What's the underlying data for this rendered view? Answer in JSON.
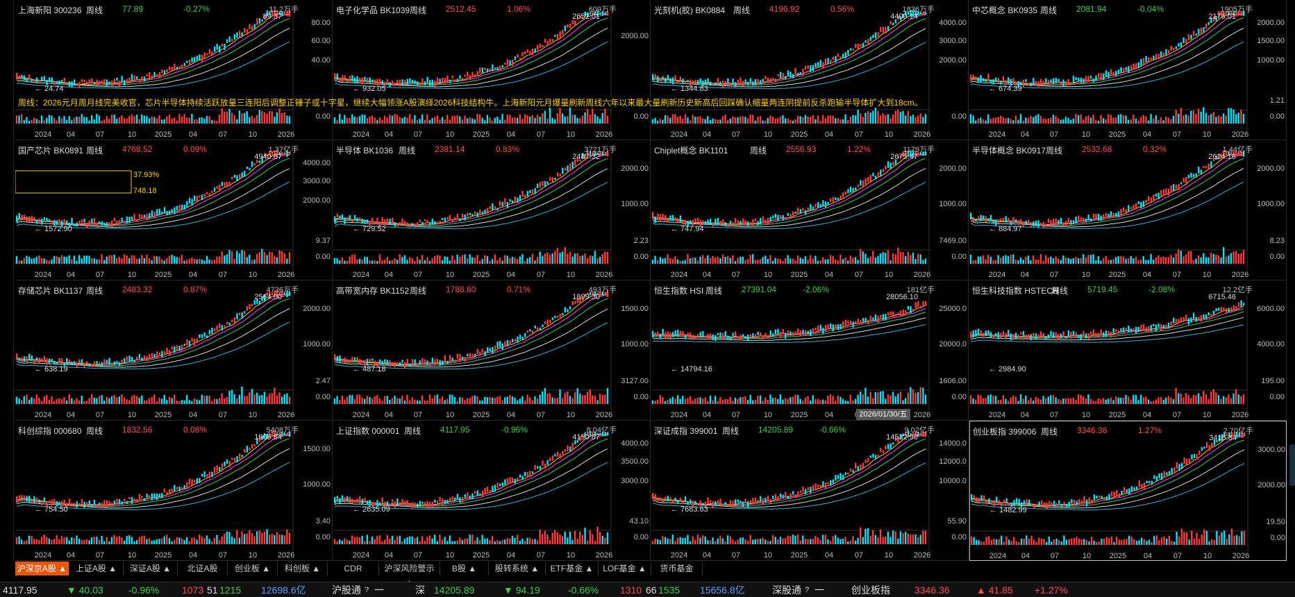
{
  "panels": [
    {
      "name": "上海新阳 300236",
      "period": "周线",
      "price": "77.89",
      "change": "-0.27%",
      "dir": "dn",
      "vol_unit": "11.2万手",
      "y_ticks": [
        "80.00",
        "60.00",
        "40.00"
      ],
      "vol_ticks": [
        "",
        "0.00"
      ],
      "high": "89.37",
      "low": "24.74",
      "x_ticks": [
        "2024",
        "04",
        "07",
        "10",
        "2025",
        "04",
        "07",
        "10",
        "2026"
      ]
    },
    {
      "name": "电子化学品 BK1039",
      "period": "周线",
      "price": "2512.45",
      "change": "1.06%",
      "dir": "up",
      "vol_unit": "609万手",
      "y_ticks": [
        "2000.00"
      ],
      "vol_ticks": [
        "",
        "0.00"
      ],
      "high": "2652.01",
      "low": "932.05",
      "x_ticks": [
        "2024",
        "04",
        "07",
        "10",
        "2025",
        "04",
        "07",
        "10",
        "2026"
      ]
    },
    {
      "name": "光刻机(胶) BK0884",
      "period": "周线",
      "price": "4196.92",
      "change": "0.56%",
      "dir": "up",
      "vol_unit": "1836万手",
      "y_ticks": [
        "4000.00",
        "3000.00",
        "2000.00"
      ],
      "vol_ticks": [
        "",
        "0.00"
      ],
      "high": "4409.14",
      "low": "1344.83",
      "x_ticks": [
        "2024",
        "04",
        "07",
        "10",
        "2025",
        "04",
        "07",
        "10",
        "2026"
      ]
    },
    {
      "name": "中芯概念 BK0935",
      "period": "周线",
      "price": "2081.94",
      "change": "-0.04%",
      "dir": "dn",
      "vol_unit": "1905万手",
      "y_ticks": [
        "2000.00",
        "1500.00",
        "1000.00"
      ],
      "vol_ticks": [
        "1.21",
        "0.00"
      ],
      "high": "2176.01",
      "low": "674.39",
      "x_ticks": [
        "2024",
        "04",
        "07",
        "10",
        "2025",
        "04",
        "07",
        "10",
        "2026"
      ]
    },
    {
      "name": "国产芯片 BK0891",
      "period": "周线",
      "price": "4768.52",
      "change": "0.09%",
      "dir": "up",
      "vol_unit": "1.37亿手",
      "y_ticks": [
        "4000.00",
        "3000.00",
        "2000.00"
      ],
      "vol_ticks": [
        "9.37",
        "0.00"
      ],
      "high": "4940.87",
      "low": "1572.90",
      "x_ticks": [
        "2024",
        "04",
        "07",
        "10",
        "2025",
        "04",
        "07",
        "10",
        "2026"
      ],
      "box": {
        "pct": "37.93%",
        "val": "748.18"
      }
    },
    {
      "name": "半导体 BK1036",
      "period": "周线",
      "price": "2381.14",
      "change": "0.83%",
      "dir": "up",
      "vol_unit": "3721万手",
      "y_ticks": [
        "2000.00",
        "1000.00"
      ],
      "vol_ticks": [
        "2.23",
        "0.00"
      ],
      "high": "2487.32",
      "low": "729.52",
      "x_ticks": [
        "2024",
        "04",
        "07",
        "10",
        "2025",
        "04",
        "07",
        "10",
        "2026"
      ]
    },
    {
      "name": "Chiplet概念 BK1101",
      "period": "周线",
      "price": "2556.93",
      "change": "1.22%",
      "dir": "up",
      "vol_unit": "1179万手",
      "y_ticks": [
        "2000.00",
        "1000.00"
      ],
      "vol_ticks": [
        "7469.00",
        "0.00"
      ],
      "high": "2675.47",
      "low": "747.94",
      "x_ticks": [
        "2024",
        "04",
        "07",
        "10",
        "2025",
        "04",
        "07",
        "10",
        "2026"
      ]
    },
    {
      "name": "半导体概念 BK0917",
      "period": "周线",
      "price": "2532.68",
      "change": "0.32%",
      "dir": "up",
      "vol_unit": "1.44亿手",
      "y_ticks": [
        "2000.00",
        "1000.00"
      ],
      "vol_ticks": [
        "8.23",
        "0.00"
      ],
      "high": "2624.16",
      "low": "884.97",
      "x_ticks": [
        "2024",
        "04",
        "07",
        "10",
        "2025",
        "04",
        "07",
        "10",
        "2026"
      ]
    },
    {
      "name": "存储芯片 BK1137",
      "period": "周线",
      "price": "2483.32",
      "change": "0.87%",
      "dir": "up",
      "vol_unit": "4736万手",
      "y_ticks": [
        "2000.00",
        "1000.00"
      ],
      "vol_ticks": [
        "2.47",
        "0.00"
      ],
      "high": "2564.00",
      "low": "638.19",
      "x_ticks": [
        "2024",
        "04",
        "07",
        "10",
        "2025",
        "04",
        "07",
        "10",
        "2026"
      ]
    },
    {
      "name": "高带宽内存 BK1152",
      "period": "周线",
      "price": "1788.80",
      "change": "0.71%",
      "dir": "up",
      "vol_unit": "493万手",
      "y_ticks": [
        "1500.00",
        "1000.00"
      ],
      "vol_ticks": [
        "3127.00",
        "0.00"
      ],
      "high": "1899.30",
      "low": "487.18",
      "x_ticks": [
        "2024",
        "04",
        "07",
        "10",
        "2025",
        "04",
        "07",
        "10",
        "2026"
      ]
    },
    {
      "name": "恒生指数 HSI",
      "period": "周线",
      "price": "27391.04",
      "change": "-2.06%",
      "dir": "dn",
      "vol_unit": "181亿手",
      "y_ticks": [
        "25000.0",
        "20000.0"
      ],
      "vol_ticks": [
        "1606.00",
        "0.00"
      ],
      "high": "28056.10",
      "low": "14794.16",
      "x_ticks": [
        "2024",
        "04",
        "07",
        "10",
        "2025",
        "04",
        "07",
        "10",
        "2026"
      ]
    },
    {
      "name": "恒生科技指数 HSTECH",
      "period": "周线",
      "price": "5719.45",
      "change": "-2.08%",
      "dir": "dn",
      "vol_unit": "12.2亿手",
      "y_ticks": [
        "6000.00",
        "4000.00"
      ],
      "vol_ticks": [
        "195.00",
        "0.00"
      ],
      "high": "6715.46",
      "low": "2984.90",
      "x_ticks": [
        "2024",
        "04",
        "07",
        "10",
        "2025",
        "04",
        "07",
        "10",
        "2026"
      ]
    },
    {
      "name": "科创综指 000680",
      "period": "周线",
      "price": "1832.56",
      "change": "0.08%",
      "dir": "up",
      "vol_unit": "5408万手",
      "y_ticks": [
        "1500.00",
        "1000.00"
      ],
      "vol_ticks": [
        "3.40",
        "0.00"
      ],
      "high": "1908.84",
      "low": "754.50",
      "x_ticks": [
        "2024",
        "04",
        "07",
        "10",
        "2025",
        "04",
        "07",
        "10",
        "2026"
      ]
    },
    {
      "name": "上证指数 000001",
      "period": "周线",
      "price": "4117.95",
      "change": "-0.96%",
      "dir": "dn",
      "vol_unit": "8.04亿手",
      "y_ticks": [
        "4000.00",
        "3500.00",
        "3000.00"
      ],
      "vol_ticks": [
        "43.10",
        "0.00"
      ],
      "high": "4190.87",
      "low": "2635.09",
      "x_ticks": [
        "2024",
        "04",
        "07",
        "10",
        "2025",
        "04",
        "07",
        "10",
        "2026"
      ]
    },
    {
      "name": "深证成指 399001",
      "period": "周线",
      "price": "14205.89",
      "change": "-0.66%",
      "dir": "dn",
      "vol_unit": "9.02亿手",
      "y_ticks": [
        "14000.0",
        "12000.0",
        "10000.0"
      ],
      "vol_ticks": [
        "55.90",
        "0.00"
      ],
      "high": "14532.90",
      "low": "7683.63",
      "x_ticks": [
        "2024",
        "04",
        "07",
        "10",
        "2025",
        "04",
        "07",
        "10",
        "2026"
      ]
    },
    {
      "name": "创业板指 399006",
      "period": "周线",
      "price": "3346.36",
      "change": "1.27%",
      "dir": "up",
      "vol_unit": "2.70亿手",
      "y_ticks": [
        "3000.00",
        "2000.00"
      ],
      "vol_ticks": [
        "19.50",
        "0.00"
      ],
      "high": "3416.84",
      "low": "1482.99",
      "x_ticks": [
        "2024",
        "04",
        "07",
        "10",
        "2025",
        "04",
        "07",
        "10",
        "2026"
      ],
      "selected": true
    }
  ],
  "annotation": "周线：2026元月周月线完美收官，芯片半导体持续活跃放量三连阳后调整正锤子或十字星，继续大幅领涨A股演绎2026科技结构牛。上海新阳元月爆量刷新周线六年以来最大量刷新历史新高后回踩确认缩量两连阴提前反杀跑输半导体扩大到18cm。",
  "date_tooltip": "2026/01/30/五",
  "tabs": [
    "沪深京A股 ▲",
    "上证A股 ▲",
    "深证A股 ▲",
    "北证A股",
    "创业板 ▲",
    "科创板 ▲",
    "CDR",
    "沪深风险警示 ▲",
    "B股 ▲",
    "股转系统 ▲",
    "ETF基金 ▲",
    "LOF基金 ▲",
    "货币基金"
  ],
  "status": {
    "sh_price": "4117.95",
    "sh_chg": "▼ 40.03",
    "sh_pct": "-0.96%",
    "sh_up": "1073",
    "sh_flat": "51",
    "sh_down": "1215",
    "sh_amt": "12698.6亿",
    "hgt": "沪股通",
    "hgt_icon": "?",
    "hgt_val": "一",
    "sz_label": "深",
    "sz_price": "14205.89",
    "sz_chg": "▼ 94.19",
    "sz_pct": "-0.66%",
    "sz_up": "1310",
    "sz_flat": "66",
    "sz_down": "1535",
    "sz_amt": "15656.8亿",
    "sgt": "深股通",
    "sgt_icon": "?",
    "sgt_val": "一",
    "cyb_label": "创业板指",
    "cyb_price": "3346.36",
    "cyb_chg": "▲ 41.85",
    "cyb_pct": "+1.27%"
  },
  "colors": {
    "up": "#ff4c4c",
    "down": "#3cd046",
    "active_tab": "#e8560a",
    "annotation": "#ffd000"
  }
}
